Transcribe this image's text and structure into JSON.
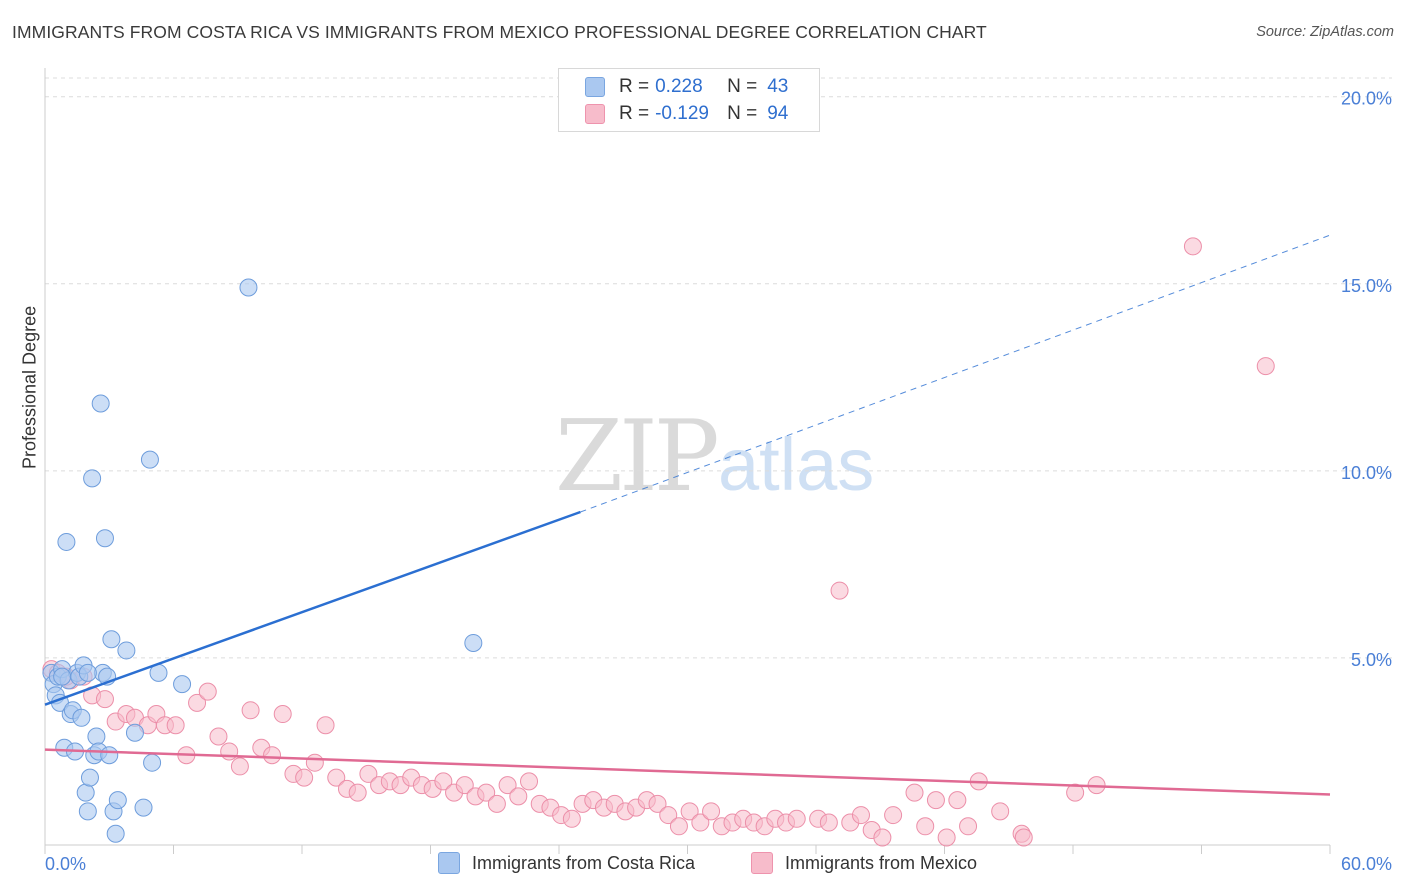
{
  "header": {
    "title": "IMMIGRANTS FROM COSTA RICA VS IMMIGRANTS FROM MEXICO PROFESSIONAL DEGREE CORRELATION CHART",
    "source": "Source: ZipAtlas.com"
  },
  "watermark": {
    "zip": "ZIP",
    "atlas": "atlas"
  },
  "legend": {
    "r_label": "R =",
    "n_label": "N =",
    "series": [
      {
        "r": "0.228",
        "n": "43",
        "color": "#aac8f0",
        "border": "#7aa6e0"
      },
      {
        "r": "-0.129",
        "n": "94",
        "color": "#f7bccb",
        "border": "#ee93ad"
      }
    ]
  },
  "bottom_legend": [
    "Immigrants from Costa Rica",
    "Immigrants from Mexico"
  ],
  "colors": {
    "blue_fill": "#aac8f0",
    "blue_stroke": "#6e9ddc",
    "blue_line": "#2b6fd1",
    "pink_fill": "#f7bccb",
    "pink_stroke": "#ec8fa9",
    "pink_line": "#e06a93",
    "grid": "#dcdcdc",
    "tick_text": "#4a7fd6"
  },
  "chart_data": {
    "type": "scatter",
    "title": "IMMIGRANTS FROM COSTA RICA VS IMMIGRANTS FROM MEXICO PROFESSIONAL DEGREE CORRELATION CHART",
    "xlabel": "",
    "ylabel": "Professional Degree",
    "xlim": [
      0,
      60
    ],
    "ylim": [
      0,
      20.5
    ],
    "x_tick_labels": [
      "0.0%",
      "60.0%"
    ],
    "y_ticks": [
      {
        "value": 5,
        "label": "5.0%"
      },
      {
        "value": 10,
        "label": "10.0%"
      },
      {
        "value": 15,
        "label": "15.0%"
      },
      {
        "value": 20,
        "label": "20.0%"
      }
    ],
    "series": [
      {
        "name": "Immigrants from Costa Rica",
        "r": 0.228,
        "n": 43,
        "trend": {
          "x0": 0,
          "y0": 3.75,
          "x1": 25,
          "y1": 8.9,
          "dash_to_x": 60,
          "dash_to_y": 16.3
        },
        "points": [
          [
            0.3,
            4.6
          ],
          [
            0.4,
            4.3
          ],
          [
            0.5,
            4.0
          ],
          [
            0.6,
            4.5
          ],
          [
            0.7,
            3.8
          ],
          [
            0.8,
            4.7
          ],
          [
            0.9,
            2.6
          ],
          [
            1.0,
            8.1
          ],
          [
            1.1,
            4.4
          ],
          [
            1.2,
            3.5
          ],
          [
            1.3,
            3.6
          ],
          [
            1.4,
            2.5
          ],
          [
            1.5,
            4.6
          ],
          [
            1.6,
            4.5
          ],
          [
            1.7,
            3.4
          ],
          [
            1.8,
            4.8
          ],
          [
            1.9,
            1.4
          ],
          [
            2.0,
            0.9
          ],
          [
            2.1,
            1.8
          ],
          [
            2.2,
            9.8
          ],
          [
            2.3,
            2.4
          ],
          [
            2.4,
            2.9
          ],
          [
            2.5,
            2.5
          ],
          [
            2.6,
            11.8
          ],
          [
            2.7,
            4.6
          ],
          [
            2.8,
            8.2
          ],
          [
            2.9,
            4.5
          ],
          [
            3.0,
            2.4
          ],
          [
            3.1,
            5.5
          ],
          [
            3.2,
            0.9
          ],
          [
            3.3,
            0.3
          ],
          [
            3.4,
            1.2
          ],
          [
            3.8,
            5.2
          ],
          [
            4.2,
            3.0
          ],
          [
            4.6,
            1.0
          ],
          [
            4.9,
            10.3
          ],
          [
            5.0,
            2.2
          ],
          [
            5.3,
            4.6
          ],
          [
            6.4,
            4.3
          ],
          [
            9.5,
            14.9
          ],
          [
            20.0,
            5.4
          ],
          [
            0.8,
            4.5
          ],
          [
            2.0,
            4.6
          ]
        ]
      },
      {
        "name": "Immigrants from Mexico",
        "r": -0.129,
        "n": 94,
        "trend": {
          "x0": 0,
          "y0": 2.55,
          "x1": 60,
          "y1": 1.35
        },
        "points": [
          [
            0.3,
            4.7
          ],
          [
            0.6,
            4.6
          ],
          [
            1.2,
            4.4
          ],
          [
            1.8,
            4.5
          ],
          [
            2.2,
            4.0
          ],
          [
            2.8,
            3.9
          ],
          [
            3.3,
            3.3
          ],
          [
            3.8,
            3.5
          ],
          [
            4.2,
            3.4
          ],
          [
            4.8,
            3.2
          ],
          [
            5.2,
            3.5
          ],
          [
            5.6,
            3.2
          ],
          [
            6.1,
            3.2
          ],
          [
            6.6,
            2.4
          ],
          [
            7.1,
            3.8
          ],
          [
            7.6,
            4.1
          ],
          [
            8.1,
            2.9
          ],
          [
            8.6,
            2.5
          ],
          [
            9.1,
            2.1
          ],
          [
            9.6,
            3.6
          ],
          [
            10.1,
            2.6
          ],
          [
            10.6,
            2.4
          ],
          [
            11.1,
            3.5
          ],
          [
            11.6,
            1.9
          ],
          [
            12.1,
            1.8
          ],
          [
            12.6,
            2.2
          ],
          [
            13.1,
            3.2
          ],
          [
            13.6,
            1.8
          ],
          [
            14.1,
            1.5
          ],
          [
            14.6,
            1.4
          ],
          [
            15.1,
            1.9
          ],
          [
            15.6,
            1.6
          ],
          [
            16.1,
            1.7
          ],
          [
            16.6,
            1.6
          ],
          [
            17.1,
            1.8
          ],
          [
            17.6,
            1.6
          ],
          [
            18.1,
            1.5
          ],
          [
            18.6,
            1.7
          ],
          [
            19.1,
            1.4
          ],
          [
            19.6,
            1.6
          ],
          [
            20.1,
            1.3
          ],
          [
            20.6,
            1.4
          ],
          [
            21.1,
            1.1
          ],
          [
            21.6,
            1.6
          ],
          [
            22.1,
            1.3
          ],
          [
            22.6,
            1.7
          ],
          [
            23.1,
            1.1
          ],
          [
            23.6,
            1.0
          ],
          [
            24.1,
            0.8
          ],
          [
            24.6,
            0.7
          ],
          [
            25.1,
            1.1
          ],
          [
            25.6,
            1.2
          ],
          [
            26.1,
            1.0
          ],
          [
            26.6,
            1.1
          ],
          [
            27.1,
            0.9
          ],
          [
            27.6,
            1.0
          ],
          [
            28.1,
            1.2
          ],
          [
            28.6,
            1.1
          ],
          [
            29.1,
            0.8
          ],
          [
            29.6,
            0.5
          ],
          [
            30.1,
            0.9
          ],
          [
            30.6,
            0.6
          ],
          [
            31.1,
            0.9
          ],
          [
            31.6,
            0.5
          ],
          [
            32.1,
            0.6
          ],
          [
            32.6,
            0.7
          ],
          [
            33.1,
            0.6
          ],
          [
            33.6,
            0.5
          ],
          [
            34.1,
            0.7
          ],
          [
            34.6,
            0.6
          ],
          [
            35.1,
            0.7
          ],
          [
            36.1,
            0.7
          ],
          [
            36.6,
            0.6
          ],
          [
            37.1,
            6.8
          ],
          [
            37.6,
            0.6
          ],
          [
            38.1,
            0.8
          ],
          [
            38.6,
            0.4
          ],
          [
            39.1,
            0.2
          ],
          [
            39.6,
            0.8
          ],
          [
            40.6,
            1.4
          ],
          [
            41.1,
            0.5
          ],
          [
            41.6,
            1.2
          ],
          [
            42.1,
            0.2
          ],
          [
            42.6,
            1.2
          ],
          [
            43.1,
            0.5
          ],
          [
            43.6,
            1.7
          ],
          [
            44.6,
            0.9
          ],
          [
            45.6,
            0.3
          ],
          [
            45.7,
            0.2
          ],
          [
            48.1,
            1.4
          ],
          [
            49.1,
            1.6
          ],
          [
            53.6,
            16.0
          ],
          [
            57.0,
            12.8
          ],
          [
            1.0,
            4.5
          ]
        ]
      }
    ]
  }
}
